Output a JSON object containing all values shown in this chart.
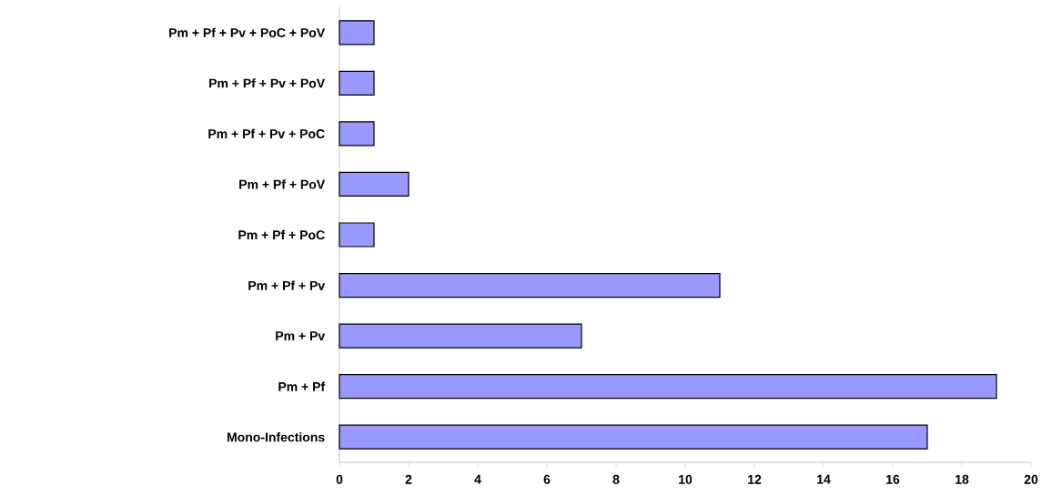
{
  "chart_data": {
    "type": "bar",
    "orientation": "horizontal",
    "categories": [
      "Pm + Pf + Pv + PoC + PoV",
      "Pm + Pf + Pv + PoV",
      "Pm + Pf + Pv + PoC",
      "Pm + Pf + PoV",
      "Pm + Pf + PoC",
      "Pm + Pf + Pv",
      "Pm + Pv",
      "Pm + Pf",
      "Mono-Infections"
    ],
    "values": [
      1,
      1,
      1,
      2,
      1,
      11,
      7,
      19,
      17
    ],
    "color": "#9999ff",
    "xlim": [
      0,
      20
    ],
    "xticks": [
      0,
      2,
      4,
      6,
      8,
      10,
      12,
      14,
      16,
      18,
      20
    ],
    "grid": false
  }
}
